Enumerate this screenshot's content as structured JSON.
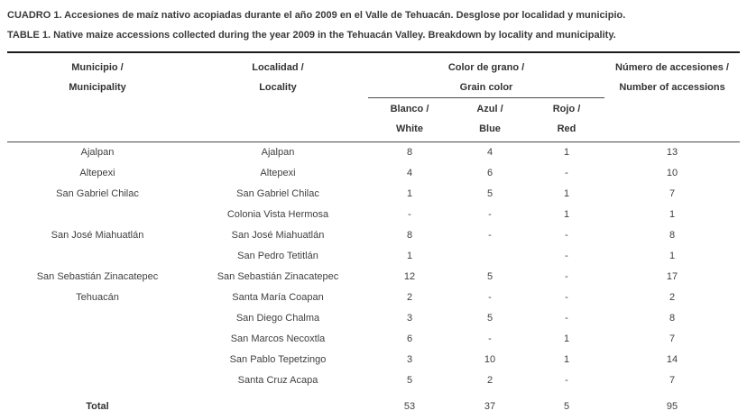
{
  "captions": {
    "spanish": "CUADRO 1. Accesiones de maíz nativo acopiadas durante el año 2009 en el Valle de Tehuacán. Desglose por localidad y municipio.",
    "english": "TABLE 1. Native maize accessions collected during the year 2009 in the Tehuacán Valley. Breakdown by locality and municipality."
  },
  "colors": {
    "text": "#3f3f3f",
    "heading_text": "#333333",
    "thick_rule": "#1c1c1c",
    "thin_rule": "#4a4a4a",
    "background": "#ffffff"
  },
  "table": {
    "headers": {
      "municipio": {
        "line1": "Municipio /",
        "line2": "Municipality"
      },
      "localidad": {
        "line1": "Localidad /",
        "line2": "Locality"
      },
      "grain_color": {
        "line1": "Color de grano /",
        "line2": "Grain color"
      },
      "blanco": {
        "line1": "Blanco /",
        "line2": "White"
      },
      "azul": {
        "line1": "Azul /",
        "line2": "Blue"
      },
      "rojo": {
        "line1": "Rojo /",
        "line2": "Red"
      },
      "numero": {
        "line1": "Número de accesiones /",
        "line2": "Number of accessions"
      }
    },
    "rows": [
      {
        "municipio": "Ajalpan",
        "localidad": "Ajalpan",
        "blanco": "8",
        "azul": "4",
        "rojo": "1",
        "total": "13"
      },
      {
        "municipio": "Altepexi",
        "localidad": "Altepexi",
        "blanco": "4",
        "azul": "6",
        "rojo": "-",
        "total": "10"
      },
      {
        "municipio": "San Gabriel Chilac",
        "localidad": "San Gabriel Chilac",
        "blanco": "1",
        "azul": "5",
        "rojo": "1",
        "total": "7"
      },
      {
        "municipio": "",
        "localidad": "Colonia Vista Hermosa",
        "blanco": "-",
        "azul": "-",
        "rojo": "1",
        "total": "1"
      },
      {
        "municipio": "San José Miahuatlán",
        "localidad": "San José Miahuatlán",
        "blanco": "8",
        "azul": "-",
        "rojo": "-",
        "total": "8"
      },
      {
        "municipio": "",
        "localidad": "San Pedro Tetitlán",
        "blanco": "1",
        "azul": "",
        "rojo": "-",
        "total": "1"
      },
      {
        "municipio": "San Sebastián Zinacatepec",
        "localidad": "San Sebastián Zinacatepec",
        "blanco": "12",
        "azul": "5",
        "rojo": "-",
        "total": "17"
      },
      {
        "municipio": "Tehuacán",
        "localidad": "Santa María Coapan",
        "blanco": "2",
        "azul": "-",
        "rojo": "-",
        "total": "2"
      },
      {
        "municipio": "",
        "localidad": "San Diego Chalma",
        "blanco": "3",
        "azul": "5",
        "rojo": "-",
        "total": "8"
      },
      {
        "municipio": "",
        "localidad": "San Marcos Necoxtla",
        "blanco": "6",
        "azul": "-",
        "rojo": "1",
        "total": "7"
      },
      {
        "municipio": "",
        "localidad": "San Pablo Tepetzingo",
        "blanco": "3",
        "azul": "10",
        "rojo": "1",
        "total": "14"
      },
      {
        "municipio": "",
        "localidad": "Santa Cruz Acapa",
        "blanco": "5",
        "azul": "2",
        "rojo": "-",
        "total": "7"
      }
    ],
    "total_row": {
      "label": "Total",
      "localidad": "",
      "blanco": "53",
      "azul": "37",
      "rojo": "5",
      "total": "95"
    }
  }
}
